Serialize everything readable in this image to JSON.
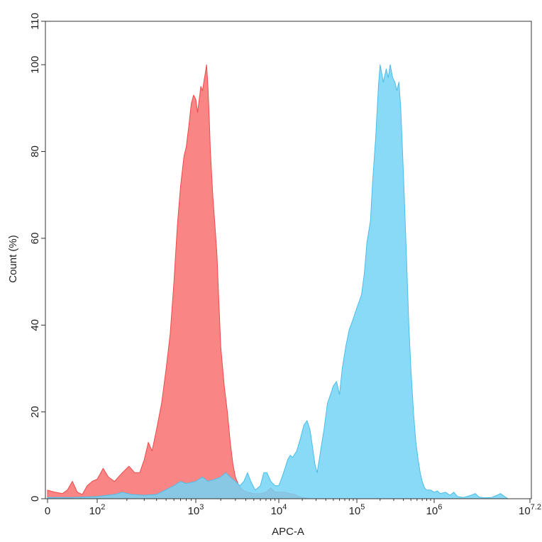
{
  "chart_data": {
    "type": "area",
    "xlabel": "APC-A",
    "ylabel": "Count (%)",
    "x_scale": "biexponential",
    "xlim": [
      -10,
      15848932
    ],
    "ylim": [
      0,
      110
    ],
    "grid": false,
    "legend": "none",
    "y_ticks": [
      0,
      20,
      40,
      60,
      80,
      100,
      110
    ],
    "x_ticks": [
      {
        "value": 0,
        "label": "0",
        "sup": ""
      },
      {
        "value": 100,
        "label": "10",
        "sup": "2"
      },
      {
        "value": 1000,
        "label": "10",
        "sup": "3"
      },
      {
        "value": 10000,
        "label": "10",
        "sup": "4"
      },
      {
        "value": 100000,
        "label": "10",
        "sup": "5"
      },
      {
        "value": 1000000,
        "label": "10",
        "sup": "6"
      },
      {
        "value": 15848932,
        "label": "10",
        "sup": "7.2"
      }
    ],
    "series": [
      {
        "color": "#f97070",
        "stroke": "#ee4a4a",
        "points": [
          [
            0,
            2
          ],
          [
            15,
            1.5
          ],
          [
            30,
            1.2
          ],
          [
            40,
            2
          ],
          [
            50,
            4
          ],
          [
            60,
            1.5
          ],
          [
            70,
            1
          ],
          [
            80,
            3
          ],
          [
            90,
            4
          ],
          [
            100,
            4.5
          ],
          [
            115,
            7
          ],
          [
            130,
            5
          ],
          [
            150,
            4
          ],
          [
            180,
            6
          ],
          [
            210,
            7.5
          ],
          [
            240,
            6
          ],
          [
            270,
            6
          ],
          [
            300,
            9
          ],
          [
            330,
            13
          ],
          [
            360,
            11
          ],
          [
            400,
            16
          ],
          [
            450,
            22
          ],
          [
            500,
            30
          ],
          [
            550,
            38
          ],
          [
            600,
            50
          ],
          [
            650,
            63
          ],
          [
            700,
            72
          ],
          [
            760,
            79
          ],
          [
            800,
            81
          ],
          [
            850,
            86
          ],
          [
            900,
            91
          ],
          [
            950,
            93
          ],
          [
            1000,
            92
          ],
          [
            1050,
            89
          ],
          [
            1100,
            92
          ],
          [
            1150,
            95
          ],
          [
            1200,
            94
          ],
          [
            1250,
            96
          ],
          [
            1300,
            98
          ],
          [
            1350,
            100
          ],
          [
            1400,
            95
          ],
          [
            1450,
            88
          ],
          [
            1500,
            80
          ],
          [
            1600,
            70
          ],
          [
            1700,
            63
          ],
          [
            1800,
            56
          ],
          [
            1900,
            45
          ],
          [
            2000,
            35
          ],
          [
            2200,
            26
          ],
          [
            2400,
            20
          ],
          [
            2600,
            13
          ],
          [
            2800,
            8
          ],
          [
            3000,
            5
          ],
          [
            3300,
            3
          ],
          [
            3700,
            2
          ],
          [
            4200,
            1.5
          ],
          [
            5000,
            1.2
          ],
          [
            6000,
            1.2
          ],
          [
            7000,
            1.5
          ],
          [
            8000,
            2.5
          ],
          [
            9000,
            1.5
          ],
          [
            10000,
            1.5
          ],
          [
            12000,
            1.5
          ],
          [
            14000,
            1.2
          ],
          [
            16000,
            1
          ],
          [
            18000,
            0.5
          ],
          [
            20000,
            0.3
          ],
          [
            25000,
            0
          ]
        ]
      },
      {
        "color": "#74d4f6",
        "stroke": "#4bbde8",
        "points": [
          [
            0,
            0.3
          ],
          [
            50,
            0.3
          ],
          [
            100,
            0.5
          ],
          [
            150,
            1
          ],
          [
            180,
            1.5
          ],
          [
            220,
            1
          ],
          [
            300,
            0.8
          ],
          [
            400,
            1
          ],
          [
            600,
            3
          ],
          [
            700,
            4
          ],
          [
            800,
            3.5
          ],
          [
            1000,
            4
          ],
          [
            1200,
            5
          ],
          [
            1400,
            4
          ],
          [
            1700,
            4.5
          ],
          [
            2000,
            5
          ],
          [
            2300,
            6
          ],
          [
            2600,
            5
          ],
          [
            3000,
            4
          ],
          [
            3400,
            3
          ],
          [
            3800,
            4
          ],
          [
            4200,
            6
          ],
          [
            4600,
            4
          ],
          [
            5200,
            2
          ],
          [
            6000,
            3
          ],
          [
            6600,
            6
          ],
          [
            7200,
            6
          ],
          [
            8000,
            4
          ],
          [
            9000,
            3
          ],
          [
            10000,
            3
          ],
          [
            11000,
            5
          ],
          [
            12000,
            7
          ],
          [
            13000,
            9
          ],
          [
            14000,
            10
          ],
          [
            15000,
            9.5
          ],
          [
            17000,
            11
          ],
          [
            19000,
            14
          ],
          [
            21000,
            17
          ],
          [
            23000,
            18
          ],
          [
            25000,
            16
          ],
          [
            27000,
            12
          ],
          [
            29000,
            8
          ],
          [
            31000,
            6
          ],
          [
            33000,
            9
          ],
          [
            35000,
            12
          ],
          [
            38000,
            16
          ],
          [
            42000,
            22
          ],
          [
            46000,
            24
          ],
          [
            50000,
            26
          ],
          [
            55000,
            27
          ],
          [
            60000,
            24
          ],
          [
            65000,
            30
          ],
          [
            72000,
            35
          ],
          [
            80000,
            39
          ],
          [
            88000,
            41
          ],
          [
            96000,
            43
          ],
          [
            105000,
            45
          ],
          [
            115000,
            47
          ],
          [
            125000,
            52
          ],
          [
            135000,
            59
          ],
          [
            150000,
            64
          ],
          [
            160000,
            73
          ],
          [
            175000,
            83
          ],
          [
            190000,
            95
          ],
          [
            200000,
            100
          ],
          [
            210000,
            98
          ],
          [
            220000,
            96
          ],
          [
            240000,
            99
          ],
          [
            255000,
            97
          ],
          [
            270000,
            100
          ],
          [
            290000,
            97
          ],
          [
            310000,
            96
          ],
          [
            330000,
            94
          ],
          [
            350000,
            96
          ],
          [
            370000,
            90
          ],
          [
            390000,
            80
          ],
          [
            410000,
            70
          ],
          [
            440000,
            55
          ],
          [
            470000,
            40
          ],
          [
            500000,
            30
          ],
          [
            540000,
            20
          ],
          [
            580000,
            13
          ],
          [
            620000,
            9
          ],
          [
            660000,
            6
          ],
          [
            700000,
            4
          ],
          [
            750000,
            2.5
          ],
          [
            800000,
            2
          ],
          [
            900000,
            2
          ],
          [
            1000000,
            1.5
          ],
          [
            1100000,
            1.8
          ],
          [
            1200000,
            1.2
          ],
          [
            1400000,
            1.5
          ],
          [
            1600000,
            0.8
          ],
          [
            1800000,
            1.5
          ],
          [
            2000000,
            0.5
          ],
          [
            2400000,
            0.3
          ],
          [
            3000000,
            0.8
          ],
          [
            3400000,
            1.2
          ],
          [
            3800000,
            0.4
          ],
          [
            4500000,
            0.2
          ],
          [
            5500000,
            0.3
          ],
          [
            6500000,
            0.8
          ],
          [
            7200000,
            1.2
          ],
          [
            8000000,
            0.6
          ],
          [
            9000000,
            0
          ],
          [
            15848932,
            0
          ]
        ]
      }
    ]
  }
}
